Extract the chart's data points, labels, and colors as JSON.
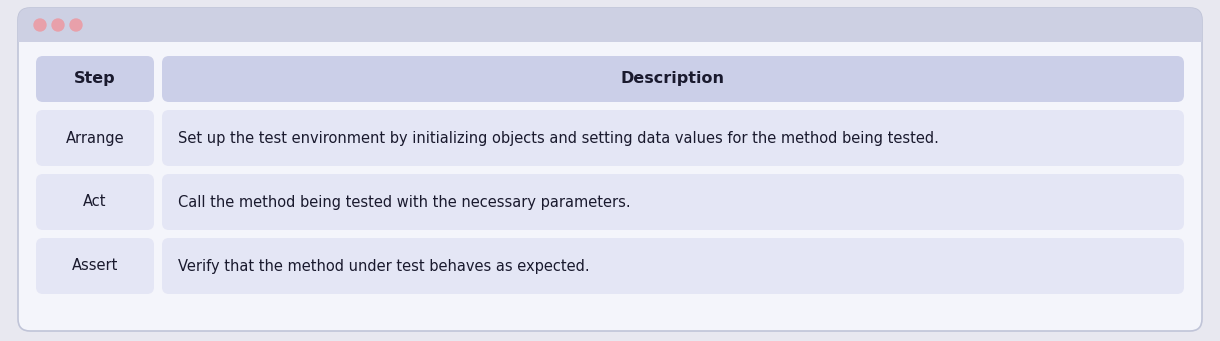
{
  "fig_width": 12.2,
  "fig_height": 3.41,
  "dpi": 100,
  "background_color": "#e8e8f0",
  "window_bg_color": "#f4f5fb",
  "window_bar_color": "#cdd0e3",
  "window_border_color": "#c0c4d8",
  "header_bg_color": "#cbcfe8",
  "row_bg_color": "#e4e6f5",
  "header_step": "Step",
  "header_desc": "Description",
  "rows": [
    {
      "step": "Arrange",
      "description": "Set up the test environment by initializing objects and setting data values for the method being tested."
    },
    {
      "step": "Act",
      "description": "Call the method being tested with the necessary parameters."
    },
    {
      "step": "Assert",
      "description": "Verify that the method under test behaves as expected."
    }
  ],
  "dot_colors": [
    "#e8a0aa",
    "#e8a0aa",
    "#e8a0aa"
  ],
  "text_color": "#1a1a2e",
  "header_text_color": "#1a1a2e",
  "font_size": 10.5,
  "header_font_size": 11.5
}
